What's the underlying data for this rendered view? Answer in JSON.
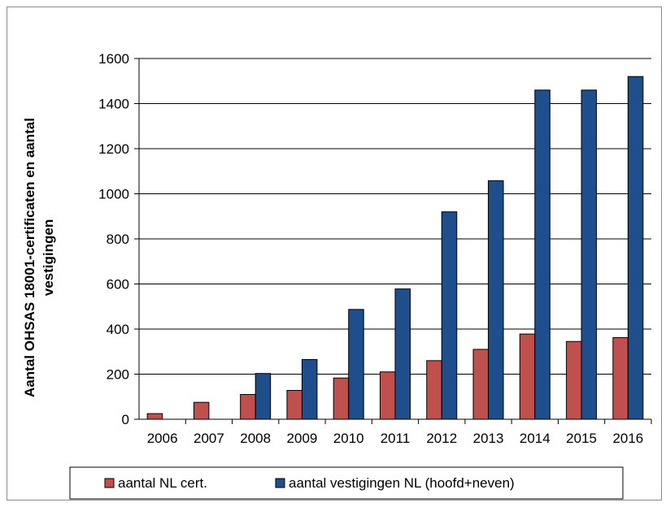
{
  "chart_data": {
    "type": "bar",
    "title": "",
    "xlabel": "",
    "ylabel_lines": [
      "Aantal OHSAS 18001-certificaten en  aantal",
      "vestigingen"
    ],
    "categories": [
      "2006",
      "2007",
      "2008",
      "2009",
      "2010",
      "2011",
      "2012",
      "2013",
      "2014",
      "2015",
      "2016"
    ],
    "series": [
      {
        "name": "aantal NL cert.",
        "values": [
          25,
          75,
          110,
          128,
          183,
          210,
          260,
          310,
          378,
          345,
          362
        ],
        "color": "#c0504d"
      },
      {
        "name": "aantal vestigingen NL (hoofd+neven)",
        "values": [
          0,
          0,
          203,
          265,
          487,
          578,
          920,
          1058,
          1460,
          1460,
          1520
        ],
        "color": "#1f4e8c"
      }
    ],
    "ylim": [
      0,
      1600
    ],
    "yticks": [
      0,
      200,
      400,
      600,
      800,
      1000,
      1200,
      1400,
      1600
    ],
    "grid": true,
    "legend_position": "bottom"
  }
}
